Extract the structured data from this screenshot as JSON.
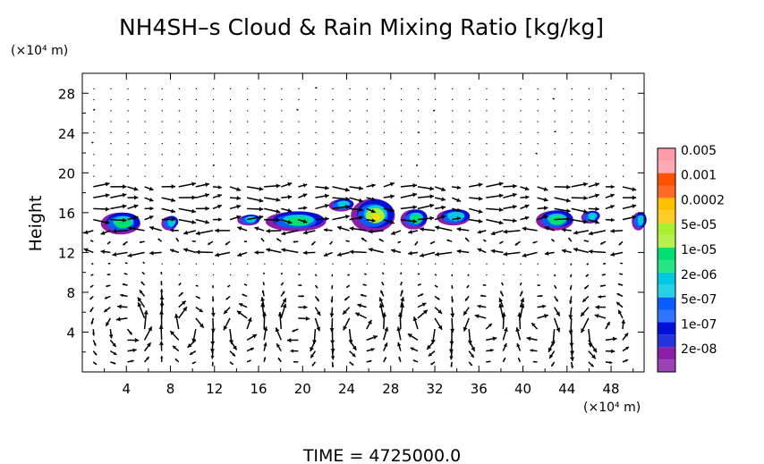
{
  "chart_data": {
    "type": "heatmap",
    "title": "NH4SH–s Cloud & Rain Mixing Ratio [kg/kg]",
    "xlabel": "",
    "ylabel": "Height",
    "x_unit": "(×10⁴ m)",
    "y_unit": "(×10⁴ m)",
    "time_label": "TIME  =  4725000.0",
    "xlim": [
      0,
      51
    ],
    "ylim": [
      0,
      30
    ],
    "xticks": [
      4,
      8,
      12,
      16,
      20,
      24,
      28,
      32,
      36,
      40,
      44,
      48
    ],
    "yticks": [
      4,
      8,
      12,
      16,
      20,
      24,
      28
    ],
    "grid": false,
    "legend_position": "right",
    "colorbar": [
      {
        "label": "2e-08",
        "color": "#8b1fa8"
      },
      {
        "label": "1e-07",
        "color": "#0010d8"
      },
      {
        "label": "5e-07",
        "color": "#0a5cff"
      },
      {
        "label": "2e-06",
        "color": "#00c8e0"
      },
      {
        "label": "1e-05",
        "color": "#00e070"
      },
      {
        "label": "5e-05",
        "color": "#a8f030"
      },
      {
        "label": "0.0002",
        "color": "#ffc000"
      },
      {
        "label": "0.001",
        "color": "#ff5000"
      },
      {
        "label": "0.005",
        "color": "#ff9aa8"
      }
    ],
    "colorbar_label_order": [
      "0.005",
      "0.001",
      "0.0002",
      "5e-05",
      "1e-05",
      "2e-06",
      "5e-07",
      "1e-07",
      "2e-08"
    ],
    "cloud_patches": [
      {
        "x": 3.6,
        "y": 15.0,
        "w": 3.6,
        "h": 2.2,
        "core": "#00e070"
      },
      {
        "x": 8.0,
        "y": 15.0,
        "w": 1.4,
        "h": 1.4,
        "core": "#00c8e0"
      },
      {
        "x": 15.2,
        "y": 15.3,
        "w": 2.0,
        "h": 1.0,
        "core": "#00c8e0"
      },
      {
        "x": 19.5,
        "y": 15.2,
        "w": 5.5,
        "h": 2.0,
        "core": "#00e070"
      },
      {
        "x": 23.6,
        "y": 16.8,
        "w": 2.2,
        "h": 1.2,
        "core": "#00c8e0"
      },
      {
        "x": 26.5,
        "y": 15.8,
        "w": 4.0,
        "h": 3.4,
        "core": "#a8f030"
      },
      {
        "x": 30.2,
        "y": 15.4,
        "w": 2.4,
        "h": 2.0,
        "core": "#00e070"
      },
      {
        "x": 33.8,
        "y": 15.6,
        "w": 3.0,
        "h": 1.6,
        "core": "#00c8e0"
      },
      {
        "x": 43.0,
        "y": 15.3,
        "w": 3.4,
        "h": 2.0,
        "core": "#00e070"
      },
      {
        "x": 46.2,
        "y": 15.6,
        "w": 1.6,
        "h": 1.2,
        "core": "#00c8e0"
      },
      {
        "x": 50.6,
        "y": 15.2,
        "w": 1.2,
        "h": 1.8,
        "core": "#00c8e0"
      }
    ]
  }
}
